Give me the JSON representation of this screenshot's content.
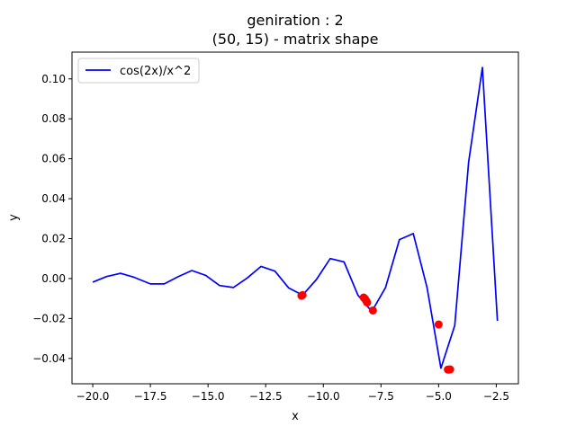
{
  "chart_data": {
    "type": "line",
    "title_line1": "geniration : 2",
    "title_line2": "(50, 15) - matrix shape",
    "xlabel": "x",
    "ylabel": "y",
    "xlim": [
      -20.9,
      -1.54
    ],
    "ylim": [
      -0.0527,
      0.1134
    ],
    "x_ticks": [
      -20.0,
      -17.5,
      -15.0,
      -12.5,
      -10.0,
      -7.5,
      -5.0,
      -2.5
    ],
    "x_tick_labels": [
      "−20.0",
      "−17.5",
      "−15.0",
      "−12.5",
      "−10.0",
      "−7.5",
      "−5.0",
      "−2.5"
    ],
    "y_ticks": [
      -0.04,
      -0.02,
      0.0,
      0.02,
      0.04,
      0.06,
      0.08,
      0.1
    ],
    "y_tick_labels": [
      "−0.04",
      "−0.02",
      "0.00",
      "0.02",
      "0.04",
      "0.06",
      "0.08",
      "0.10"
    ],
    "legend": {
      "location": "upper left",
      "entries": [
        {
          "label": "cos(2x)/x^2",
          "color": "#0000ff"
        }
      ]
    },
    "series": [
      {
        "name": "cos(2x)/x^2",
        "color": "#0000ff",
        "x": [
          -20.0,
          -19.4,
          -18.8,
          -18.2,
          -17.5,
          -16.9,
          -16.3,
          -15.7,
          -15.1,
          -14.5,
          -13.9,
          -13.3,
          -12.7,
          -12.1,
          -11.5,
          -10.9,
          -10.3,
          -9.7,
          -9.1,
          -8.5,
          -7.9,
          -7.3,
          -6.7,
          -6.1,
          -5.5,
          -4.9,
          -4.3,
          -3.7,
          -3.1,
          -2.45
        ],
        "y": [
          -0.0018,
          0.001,
          0.0026,
          0.0006,
          -0.0027,
          -0.0027,
          0.0009,
          0.004,
          0.0016,
          -0.0035,
          -0.0045,
          0.0003,
          0.0061,
          0.0037,
          -0.0047,
          -0.0083,
          -0.0005,
          0.01,
          0.0083,
          -0.0083,
          -0.0165,
          -0.0045,
          0.0195,
          0.0225,
          -0.0045,
          -0.0449,
          -0.0235,
          0.0583,
          0.1057,
          -0.0212
        ]
      }
    ],
    "markers": {
      "color": "#ff0000",
      "points": [
        [
          -10.9,
          -0.0083
        ],
        [
          -10.95,
          -0.0086
        ],
        [
          -8.2,
          -0.01
        ],
        [
          -8.15,
          -0.011
        ],
        [
          -8.1,
          -0.012
        ],
        [
          -8.25,
          -0.0095
        ],
        [
          -7.85,
          -0.016
        ],
        [
          -5.0,
          -0.023
        ],
        [
          -4.6,
          -0.0456
        ],
        [
          -4.55,
          -0.0456
        ],
        [
          -4.5,
          -0.0455
        ]
      ]
    }
  }
}
